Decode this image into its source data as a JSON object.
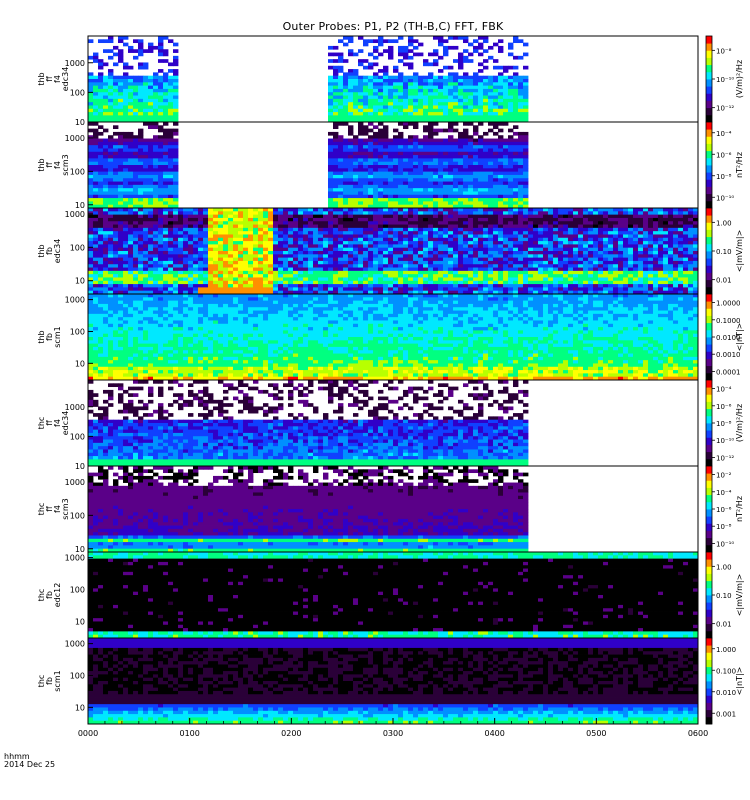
{
  "title": "Outer Probes: P1, P2 (TH-B,C) FFT, FBK",
  "footer": {
    "time_label": "hhmm",
    "date_label": "2014 Dec 25"
  },
  "colors": {
    "spectrum": [
      "#000000",
      "#2a0038",
      "#5a0088",
      "#3000c8",
      "#1040ff",
      "#0090ff",
      "#00e8ff",
      "#00ff80",
      "#b8ff00",
      "#ffff00",
      "#ff9000",
      "#ff0000"
    ]
  },
  "chart_data": {
    "type": "heatmap",
    "x_axis": {
      "ticks": [
        "0000",
        "0100",
        "0200",
        "0300",
        "0400",
        "0500",
        "0600"
      ],
      "range_hhmm": [
        "0000",
        "0600"
      ]
    },
    "panels": [
      {
        "id": "thb-ffp-e34",
        "label_lines": [
          "thb",
          "ff",
          "f4",
          "edc34"
        ],
        "y_ticks": [
          "10",
          "100",
          "1000"
        ],
        "y_range": [
          10,
          8000
        ],
        "y_scale": "log",
        "colorbar_ticks": [
          "10⁻¹²",
          "10⁻¹⁰",
          "10⁻⁸"
        ],
        "colorbar_label": "(V/m)²/Hz",
        "coverage_hhmm": [
          [
            "0000",
            "0052"
          ],
          [
            "0222",
            "0419"
          ]
        ],
        "style": "sparse-high"
      },
      {
        "id": "thb-ffp-s3",
        "label_lines": [
          "thb",
          "ff",
          "f4",
          "scm3"
        ],
        "y_ticks": [
          "10",
          "100",
          "1000"
        ],
        "y_range": [
          8,
          3000
        ],
        "y_scale": "log",
        "colorbar_ticks": [
          "10⁻¹⁰",
          "10⁻⁸",
          "10⁻⁶",
          "10⁻⁴"
        ],
        "colorbar_label": "nT²/Hz",
        "coverage_hhmm": [
          [
            "0000",
            "0052"
          ],
          [
            "0222",
            "0419"
          ]
        ],
        "style": "banded-purple"
      },
      {
        "id": "thb-fbk-e34",
        "label_lines": [
          "thb",
          "fb",
          "edc34"
        ],
        "y_ticks": [
          "10",
          "100",
          "1000"
        ],
        "y_range": [
          4,
          1500
        ],
        "y_scale": "log",
        "colorbar_ticks": [
          "0.01",
          "0.10",
          "1.00"
        ],
        "colorbar_label": "<|mV/m|>",
        "coverage_hhmm": [
          [
            "0000",
            "0600"
          ]
        ],
        "style": "fbk-e"
      },
      {
        "id": "thb-fbk-s1",
        "label_lines": [
          "thb",
          "fb",
          "scm1"
        ],
        "y_ticks": [
          "10",
          "100",
          "1000"
        ],
        "y_range": [
          3,
          1500
        ],
        "y_scale": "log",
        "colorbar_ticks": [
          "0.0001",
          "0.0010",
          "0.0100",
          "0.1000",
          "1.0000"
        ],
        "colorbar_label": "<|nT|>",
        "coverage_hhmm": [
          [
            "0000",
            "0600"
          ]
        ],
        "style": "fbk-b"
      },
      {
        "id": "thc-ffp-e34",
        "label_lines": [
          "thc",
          "ff",
          "f4",
          "edc34"
        ],
        "y_ticks": [
          "10",
          "100",
          "1000"
        ],
        "y_range": [
          10,
          8000
        ],
        "y_scale": "log",
        "colorbar_ticks": [
          "10⁻¹²",
          "10⁻¹⁰",
          "10⁻⁸",
          "10⁻⁶",
          "10⁻⁴"
        ],
        "colorbar_label": "(V/m)²/Hz",
        "coverage_hhmm": [
          [
            "0000",
            "0419"
          ]
        ],
        "style": "sparse-purple"
      },
      {
        "id": "thc-ffp-s3",
        "label_lines": [
          "thc",
          "ff",
          "f4",
          "scm3"
        ],
        "y_ticks": [
          "10",
          "100",
          "1000"
        ],
        "y_range": [
          8,
          3000
        ],
        "y_scale": "log",
        "colorbar_ticks": [
          "10⁻¹⁰",
          "10⁻⁸",
          "10⁻⁶",
          "10⁻⁴",
          "10⁻²"
        ],
        "colorbar_label": "nT²/Hz",
        "coverage_hhmm": [
          [
            "0000",
            "0419"
          ]
        ],
        "style": "banded-dark"
      },
      {
        "id": "thc-fbk-e12",
        "label_lines": [
          "thc",
          "fb",
          "edc12"
        ],
        "y_ticks": [
          "10",
          "100",
          "1000"
        ],
        "y_range": [
          3,
          1500
        ],
        "y_scale": "log",
        "colorbar_ticks": [
          "0.01",
          "0.10",
          "1.00"
        ],
        "colorbar_label": "<|mV/m|>",
        "coverage_hhmm": [
          [
            "0000",
            "0600"
          ]
        ],
        "style": "fbk-dark"
      },
      {
        "id": "thc-fbk-s1",
        "label_lines": [
          "thc",
          "fb",
          "scm1"
        ],
        "y_ticks": [
          "10",
          "100",
          "1000"
        ],
        "y_range": [
          3,
          1500
        ],
        "y_scale": "log",
        "colorbar_ticks": [
          "0.001",
          "0.010",
          "0.100",
          "1.000"
        ],
        "colorbar_label": "<|nT|>",
        "coverage_hhmm": [
          [
            "0000",
            "0600"
          ]
        ],
        "style": "fbk-dark-b"
      }
    ]
  }
}
